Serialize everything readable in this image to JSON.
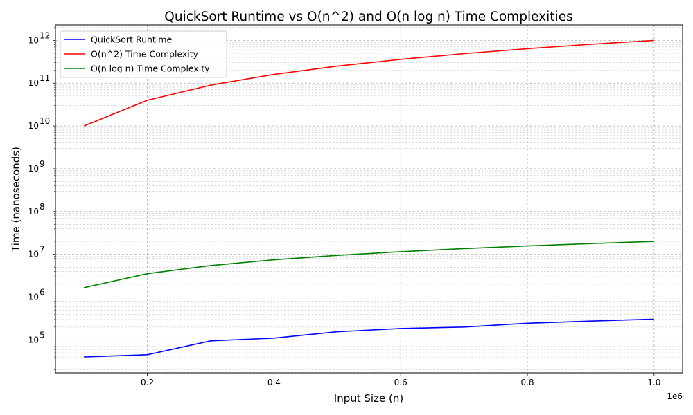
{
  "chart_data": {
    "type": "line",
    "title": "QuickSort Runtime vs O(n^2) and O(n log n) Time Complexities",
    "xlabel": "Input Size (n)",
    "ylabel": "Time (nanoseconds)",
    "x_offset_label": "1e6",
    "x_scale_factor": 1000000,
    "yscale": "log",
    "xlim": [
      55000,
      1045000
    ],
    "ylim": [
      17000,
      2300000000000
    ],
    "x_ticks": [
      {
        "value": 200000,
        "label": "0.2"
      },
      {
        "value": 400000,
        "label": "0.4"
      },
      {
        "value": 600000,
        "label": "0.6"
      },
      {
        "value": 800000,
        "label": "0.8"
      },
      {
        "value": 1000000,
        "label": "1.0"
      }
    ],
    "y_ticks": [
      {
        "value": 100000,
        "base": "10",
        "exp": "5"
      },
      {
        "value": 1000000,
        "base": "10",
        "exp": "6"
      },
      {
        "value": 10000000,
        "base": "10",
        "exp": "7"
      },
      {
        "value": 100000000,
        "base": "10",
        "exp": "8"
      },
      {
        "value": 1000000000,
        "base": "10",
        "exp": "9"
      },
      {
        "value": 10000000000,
        "base": "10",
        "exp": "10"
      },
      {
        "value": 100000000000,
        "base": "10",
        "exp": "11"
      },
      {
        "value": 1000000000000,
        "base": "10",
        "exp": "12"
      }
    ],
    "grid": true,
    "legend_position": "top-left",
    "x": [
      100000,
      200000,
      300000,
      400000,
      500000,
      600000,
      700000,
      800000,
      900000,
      1000000
    ],
    "series": [
      {
        "name": "QuickSort Runtime",
        "color": "#0000ff",
        "values": [
          40000,
          45000,
          95000,
          110000,
          155000,
          185000,
          200000,
          245000,
          275000,
          305000
        ]
      },
      {
        "name": "O(n^2) Time Complexity",
        "color": "#ff0000",
        "values": [
          10000000000,
          40000000000,
          90000000000,
          160000000000,
          250000000000,
          360000000000,
          490000000000,
          640000000000,
          810000000000,
          1000000000000
        ]
      },
      {
        "name": "O(n log n) Time Complexity",
        "color": "#008000",
        "values": [
          1660964,
          3521928,
          5458381,
          7443856,
          9465784,
          11516761,
          13591726,
          15687712,
          17802300,
          19931569
        ]
      }
    ]
  }
}
